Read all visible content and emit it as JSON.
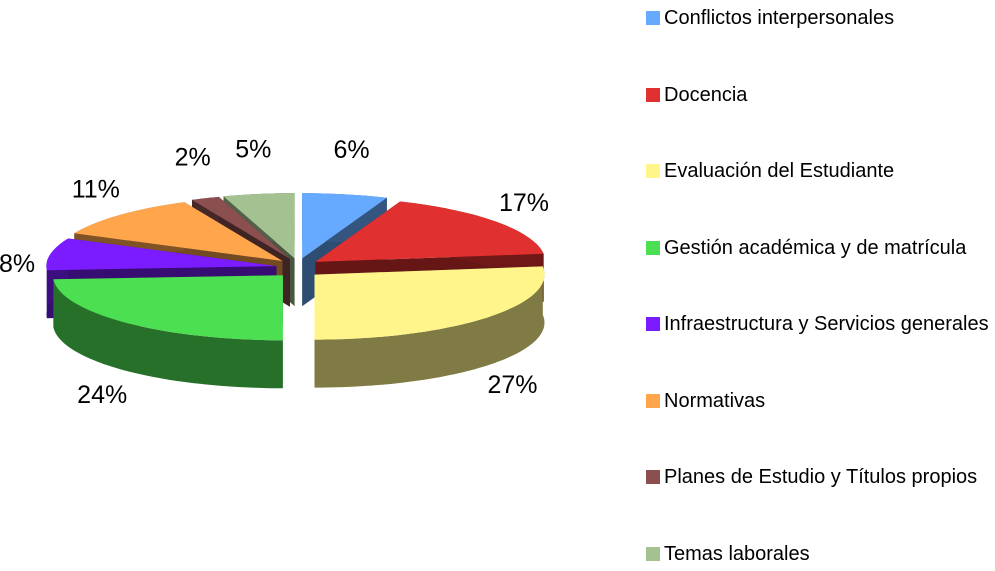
{
  "chart_data": {
    "type": "pie",
    "categories": [
      "Conflictos interpersonales",
      "Docencia",
      "Evaluación del Estudiante",
      "Gestión académica y de matrícula",
      "Infraestructura y Servicios generales",
      "Normativas",
      "Planes de Estudio y Títulos propios",
      "Temas laborales"
    ],
    "values": [
      6,
      17,
      27,
      24,
      8,
      11,
      2,
      5
    ],
    "value_labels": [
      "6%",
      "17%",
      "27%",
      "24%",
      "8%",
      "11%",
      "2%",
      "5%"
    ],
    "colors": [
      "#66aaff",
      "#e0302f",
      "#fff58a",
      "#4ddf52",
      "#7a1cff",
      "#ffa64d",
      "#8c4f50",
      "#a3c191"
    ],
    "legend": "right"
  }
}
